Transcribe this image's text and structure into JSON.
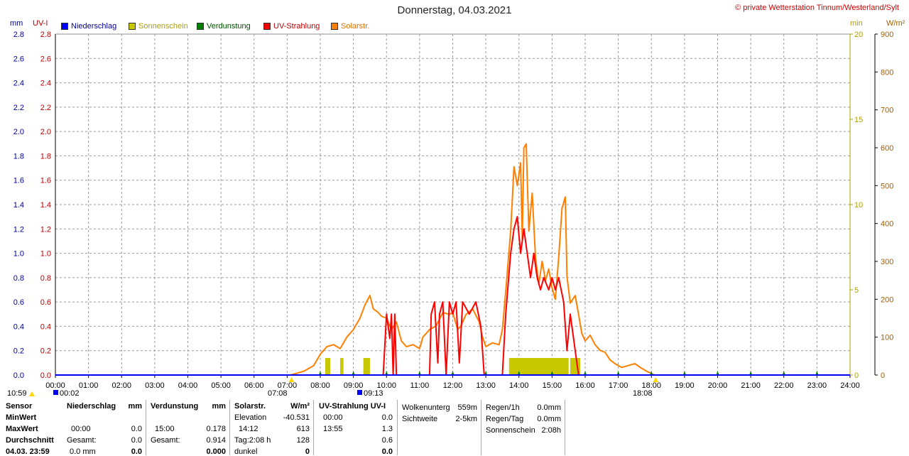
{
  "title": "Donnerstag, 04.03.2021",
  "copyright": "© private Wetterstation Tinnum/Westerland/Sylt",
  "legend": [
    {
      "label": "Niederschlag",
      "color": "#0000ff"
    },
    {
      "label": "Sonnenschein",
      "color": "#c8c800"
    },
    {
      "label": "Verdunstung",
      "color": "#008000"
    },
    {
      "label": "UV-Strahlung",
      "color": "#ff0000"
    },
    {
      "label": "Solarstr.",
      "color": "#ff8000"
    }
  ],
  "units": {
    "mm": "mm",
    "uvi": "UV-I",
    "min": "min",
    "wm2": "W/m²"
  },
  "markers": {
    "left_time": "10:59",
    "left_time2": "00:02",
    "sunrise": "07:08",
    "uv_start": "09:13",
    "sunset": "18:08"
  },
  "chart_data": {
    "type": "line",
    "x_ticks": [
      "00:00",
      "01:00",
      "02:00",
      "03:00",
      "04:00",
      "05:00",
      "06:00",
      "07:00",
      "08:00",
      "09:00",
      "10:00",
      "11:00",
      "12:00",
      "13:00",
      "14:00",
      "15:00",
      "16:00",
      "17:00",
      "18:00",
      "19:00",
      "20:00",
      "21:00",
      "22:00",
      "23:00",
      "24:00"
    ],
    "axes": {
      "mm": {
        "range": [
          0,
          2.8
        ],
        "ticks": [
          "0.0",
          "0.2",
          "0.4",
          "0.6",
          "0.8",
          "1.0",
          "1.2",
          "1.4",
          "1.6",
          "1.8",
          "2.0",
          "2.2",
          "2.4",
          "2.6",
          "2.8"
        ],
        "color": "#0000a0"
      },
      "uvi": {
        "range": [
          0,
          2.8
        ],
        "ticks": [
          "0.0",
          "0.2",
          "0.4",
          "0.6",
          "0.8",
          "1.0",
          "1.2",
          "1.4",
          "1.6",
          "1.8",
          "2.0",
          "2.2",
          "2.4",
          "2.6",
          "2.8"
        ],
        "color": "#c00000"
      },
      "min": {
        "range": [
          0,
          20
        ],
        "ticks": [
          "0",
          "5",
          "10",
          "15",
          "20"
        ],
        "color": "#b0a000"
      },
      "wm2": {
        "range": [
          0,
          900
        ],
        "ticks": [
          "0",
          "100",
          "200",
          "300",
          "400",
          "500",
          "600",
          "700",
          "800",
          "900"
        ],
        "color": "#a06000"
      }
    },
    "grid": true,
    "series": [
      {
        "name": "Solarstr.",
        "unit_axis": "wm2",
        "color": "#ff8000",
        "points": [
          [
            7.1,
            0
          ],
          [
            7.5,
            10
          ],
          [
            7.8,
            25
          ],
          [
            8.0,
            55
          ],
          [
            8.2,
            75
          ],
          [
            8.4,
            80
          ],
          [
            8.6,
            70
          ],
          [
            8.8,
            100
          ],
          [
            9.0,
            120
          ],
          [
            9.2,
            150
          ],
          [
            9.35,
            185
          ],
          [
            9.5,
            210
          ],
          [
            9.6,
            175
          ],
          [
            9.75,
            165
          ],
          [
            9.85,
            155
          ],
          [
            10.0,
            150
          ],
          [
            10.15,
            120
          ],
          [
            10.3,
            140
          ],
          [
            10.45,
            90
          ],
          [
            10.6,
            75
          ],
          [
            10.8,
            80
          ],
          [
            11.0,
            70
          ],
          [
            11.1,
            100
          ],
          [
            11.3,
            120
          ],
          [
            11.5,
            130
          ],
          [
            11.7,
            165
          ],
          [
            11.9,
            160
          ],
          [
            12.0,
            165
          ],
          [
            12.15,
            120
          ],
          [
            12.25,
            130
          ],
          [
            12.4,
            160
          ],
          [
            12.6,
            175
          ],
          [
            12.8,
            140
          ],
          [
            12.9,
            100
          ],
          [
            13.0,
            75
          ],
          [
            13.2,
            85
          ],
          [
            13.4,
            80
          ],
          [
            13.5,
            120
          ],
          [
            13.6,
            220
          ],
          [
            13.75,
            380
          ],
          [
            13.85,
            550
          ],
          [
            13.95,
            500
          ],
          [
            14.05,
            560
          ],
          [
            14.1,
            360
          ],
          [
            14.15,
            600
          ],
          [
            14.22,
            610
          ],
          [
            14.3,
            380
          ],
          [
            14.4,
            480
          ],
          [
            14.5,
            310
          ],
          [
            14.6,
            240
          ],
          [
            14.7,
            300
          ],
          [
            14.8,
            250
          ],
          [
            14.9,
            280
          ],
          [
            15.0,
            230
          ],
          [
            15.1,
            200
          ],
          [
            15.2,
            310
          ],
          [
            15.3,
            440
          ],
          [
            15.4,
            470
          ],
          [
            15.45,
            260
          ],
          [
            15.55,
            190
          ],
          [
            15.7,
            210
          ],
          [
            15.8,
            160
          ],
          [
            15.9,
            110
          ],
          [
            16.0,
            90
          ],
          [
            16.15,
            105
          ],
          [
            16.3,
            80
          ],
          [
            16.45,
            65
          ],
          [
            16.6,
            60
          ],
          [
            16.75,
            40
          ],
          [
            16.9,
            30
          ],
          [
            17.1,
            20
          ],
          [
            17.3,
            25
          ],
          [
            17.5,
            30
          ],
          [
            17.7,
            18
          ],
          [
            17.9,
            8
          ],
          [
            18.1,
            0
          ]
        ]
      },
      {
        "name": "UV-Strahlung",
        "unit_axis": "uvi",
        "color": "#ff0000",
        "points": [
          [
            9.9,
            0
          ],
          [
            10.0,
            0.5
          ],
          [
            10.1,
            0.3
          ],
          [
            10.15,
            0.5
          ],
          [
            10.2,
            0.0
          ],
          [
            10.25,
            0.5
          ],
          [
            10.3,
            0.0
          ],
          [
            11.3,
            0
          ],
          [
            11.35,
            0.5
          ],
          [
            11.45,
            0.6
          ],
          [
            11.55,
            0.1
          ],
          [
            11.6,
            0.5
          ],
          [
            11.7,
            0.6
          ],
          [
            11.8,
            0.0
          ],
          [
            11.9,
            0.6
          ],
          [
            12.0,
            0.5
          ],
          [
            12.1,
            0.6
          ],
          [
            12.2,
            0.1
          ],
          [
            12.3,
            0.6
          ],
          [
            12.5,
            0.5
          ],
          [
            12.7,
            0.6
          ],
          [
            12.85,
            0.4
          ],
          [
            12.95,
            0.0
          ],
          [
            13.5,
            0
          ],
          [
            13.6,
            0.5
          ],
          [
            13.75,
            1.0
          ],
          [
            13.85,
            1.2
          ],
          [
            13.95,
            1.3
          ],
          [
            14.05,
            1.0
          ],
          [
            14.15,
            1.2
          ],
          [
            14.25,
            1.0
          ],
          [
            14.35,
            0.8
          ],
          [
            14.45,
            1.0
          ],
          [
            14.55,
            0.8
          ],
          [
            14.65,
            0.7
          ],
          [
            14.75,
            0.8
          ],
          [
            14.9,
            0.7
          ],
          [
            15.0,
            0.8
          ],
          [
            15.1,
            0.7
          ],
          [
            15.2,
            0.8
          ],
          [
            15.35,
            0.6
          ],
          [
            15.45,
            0.2
          ],
          [
            15.55,
            0.5
          ],
          [
            15.7,
            0.2
          ],
          [
            15.8,
            0.0
          ]
        ]
      },
      {
        "name": "Sonnenschein",
        "unit_axis": "min",
        "color": "#c8c800",
        "bars": [
          [
            8.15,
            8.3,
            1
          ],
          [
            8.6,
            8.7,
            1
          ],
          [
            9.3,
            9.5,
            1
          ],
          [
            13.7,
            15.5,
            1
          ],
          [
            15.55,
            15.85,
            1
          ]
        ]
      },
      {
        "name": "Verdunstung",
        "unit_axis": "mm",
        "color": "#008000",
        "ticks_at": [
          8.0,
          9.0,
          10.0,
          11.0,
          12.0,
          13.0,
          14.0,
          15.0,
          16.0,
          17.0,
          18.0,
          19.0,
          20.0,
          21.0,
          22.0,
          23.0
        ]
      }
    ]
  },
  "bottom": {
    "rows": [
      "Sensor",
      "MinWert",
      "MaxWert",
      "Durchschnitt",
      "04.03. 23:59"
    ],
    "niederschlag": {
      "header": "Niederschlag",
      "unit": "mm",
      "max_time": "00:00",
      "max": "0.0",
      "gesamt_label": "Gesamt:",
      "gesamt": "0.0",
      "last": "0.0 mm",
      "last2": "0.0"
    },
    "verdunstung": {
      "header": "Verdunstung",
      "unit": "mm",
      "max_time": "15:00",
      "max": "0.178",
      "gesamt_label": "Gesamt:",
      "gesamt": "0.914",
      "last": "0.000"
    },
    "solar": {
      "header": "Solarstr.",
      "unit": "W/m²",
      "elev_label": "Elevation",
      "elev": "-40.531",
      "max_time": "14:12",
      "max": "613",
      "tag_label": "Tag:2:08 h",
      "tag": "128",
      "dunkel": "dunkel",
      "last": "0"
    },
    "uv": {
      "header": "UV-Strahlung UV-I",
      "min_time": "00:00",
      "min": "0.0",
      "max_time": "13:55",
      "max": "1.3",
      "avg": "0.6",
      "last": "0.0"
    },
    "wolke": {
      "label": "Wolkenunterg",
      "val": "559m",
      "sicht_label": "Sichtweite",
      "sicht": "2-5km"
    },
    "regen": {
      "r1_label": "Regen/1h",
      "r1": "0.0mm",
      "rt_label": "Regen/Tag",
      "rt": "0.0mm",
      "ss_label": "Sonnenschein",
      "ss": "2:08h"
    }
  }
}
